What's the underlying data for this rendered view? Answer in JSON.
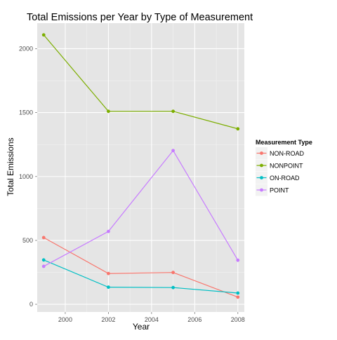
{
  "chart_data": {
    "type": "line",
    "title": "Total Emissions per Year by Type of Measurement",
    "xlabel": "Year",
    "ylabel": "Total Emissions",
    "x": [
      1999,
      2002,
      2005,
      2008
    ],
    "xlim": [
      1998.7,
      2008.3
    ],
    "ylim": [
      -60,
      2200
    ],
    "xticks": [
      2000,
      2002,
      2004,
      2006,
      2008
    ],
    "yticks": [
      0,
      500,
      1000,
      1500,
      2000
    ],
    "grid": true,
    "legend": {
      "title": "Measurement Type",
      "placement": "right"
    },
    "series": [
      {
        "name": "NON-ROAD",
        "color": "#F8766D",
        "values": [
          522,
          241,
          249,
          56
        ]
      },
      {
        "name": "NONPOINT",
        "color": "#7CAE00",
        "values": [
          2108,
          1510,
          1510,
          1373
        ]
      },
      {
        "name": "ON-ROAD",
        "color": "#00BFC4",
        "values": [
          347,
          134,
          131,
          88
        ]
      },
      {
        "name": "POINT",
        "color": "#C77CFF",
        "values": [
          297,
          570,
          1203,
          345
        ]
      }
    ]
  }
}
